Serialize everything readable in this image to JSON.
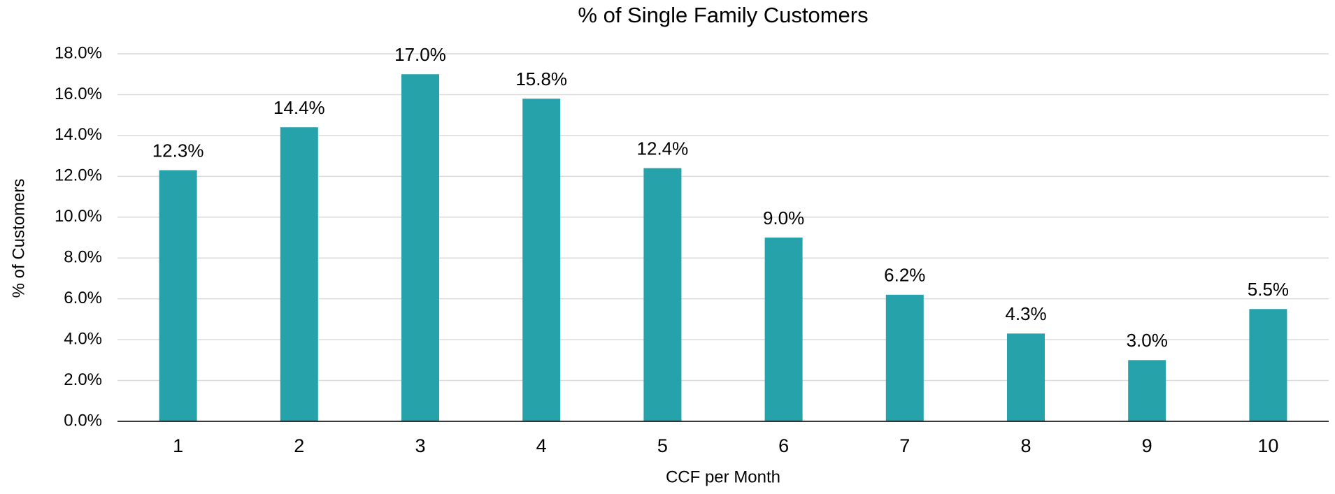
{
  "chart_data": {
    "type": "bar",
    "title": "% of Single Family Customers",
    "xlabel": "CCF per Month",
    "ylabel": "% of Customers",
    "categories": [
      "1",
      "2",
      "3",
      "4",
      "5",
      "6",
      "7",
      "8",
      "9",
      "10"
    ],
    "values": [
      12.3,
      14.4,
      17.0,
      15.8,
      12.4,
      9.0,
      6.2,
      4.3,
      3.0,
      5.5
    ],
    "value_labels": [
      "12.3%",
      "14.4%",
      "17.0%",
      "15.8%",
      "12.4%",
      "9.0%",
      "6.2%",
      "4.3%",
      "3.0%",
      "5.5%"
    ],
    "color": "#26a2aa",
    "ylim": [
      0,
      18
    ],
    "yticks": [
      {
        "value": 0,
        "label": "0.0%"
      },
      {
        "value": 2,
        "label": "2.0%"
      },
      {
        "value": 4,
        "label": "4.0%"
      },
      {
        "value": 6,
        "label": "6.0%"
      },
      {
        "value": 8,
        "label": "8.0%"
      },
      {
        "value": 10,
        "label": "10.0%"
      },
      {
        "value": 12,
        "label": "12.0%"
      },
      {
        "value": 14,
        "label": "14.0%"
      },
      {
        "value": 16,
        "label": "16.0%"
      },
      {
        "value": 18,
        "label": "18.0%"
      }
    ],
    "grid": true
  }
}
